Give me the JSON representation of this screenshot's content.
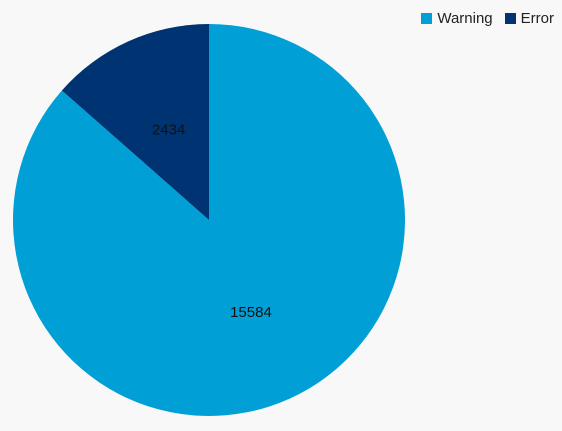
{
  "chart_data": {
    "type": "pie",
    "categories": [
      "Warning",
      "Error"
    ],
    "values": [
      15584,
      2434
    ],
    "colors": [
      "#009fd6",
      "#003371"
    ],
    "data_labels": [
      "15584",
      "2434"
    ],
    "legend": {
      "placement": "top-right",
      "items": [
        {
          "label": "Warning",
          "color": "#009fd6"
        },
        {
          "label": "Error",
          "color": "#003371"
        }
      ]
    }
  }
}
